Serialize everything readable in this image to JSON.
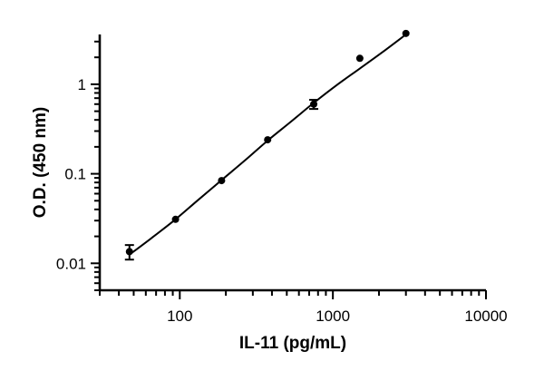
{
  "chart_data": {
    "type": "scatter",
    "xlabel": "IL-11 (pg/mL)",
    "ylabel": "O.D. (450 nm)",
    "x_scale": "log",
    "y_scale": "log",
    "xlim": [
      30,
      10000
    ],
    "ylim": [
      0.005,
      3.6
    ],
    "x_ticks": [
      {
        "value": 100,
        "label": "100"
      },
      {
        "value": 1000,
        "label": "1000"
      },
      {
        "value": 10000,
        "label": "10000"
      }
    ],
    "y_ticks": [
      {
        "value": 0.01,
        "label": "0.01"
      },
      {
        "value": 0.1,
        "label": "0.1"
      },
      {
        "value": 1,
        "label": "1"
      }
    ],
    "grid": false,
    "series": [
      {
        "x": [
          46.9,
          93.8,
          187.5,
          375,
          750,
          1500,
          3000
        ],
        "y": [
          0.0135,
          0.031,
          0.084,
          0.24,
          0.6,
          1.95,
          3.7
        ],
        "y_err": [
          0.0025,
          0.0008,
          0.003,
          0.006,
          0.07,
          0.05,
          0.05
        ]
      }
    ],
    "fit_curve": {
      "x": [
        46.9,
        65,
        93.8,
        130,
        187.5,
        265,
        375,
        530,
        750,
        1060,
        1500,
        2120,
        3000
      ],
      "y": [
        0.0125,
        0.019,
        0.031,
        0.05,
        0.085,
        0.14,
        0.235,
        0.38,
        0.62,
        0.98,
        1.5,
        2.3,
        3.6
      ]
    }
  }
}
